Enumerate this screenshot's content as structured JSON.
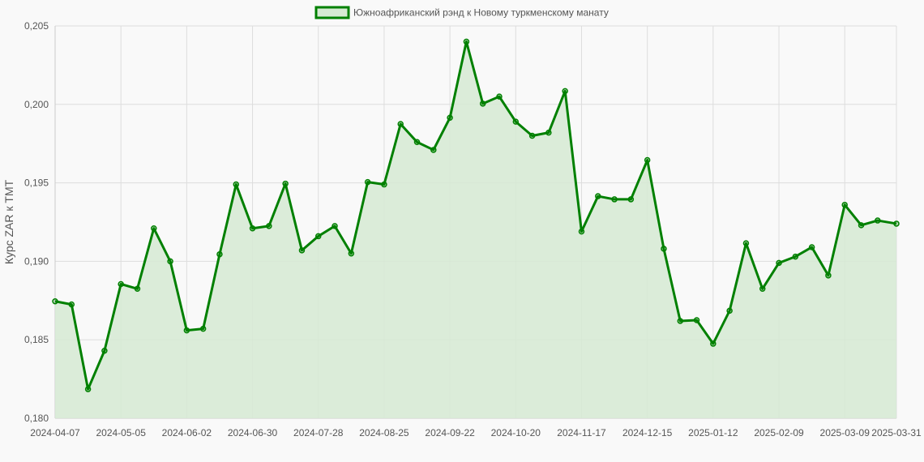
{
  "chart_data": {
    "type": "line",
    "legend": {
      "label": "Южноафриканский рэнд к Новому туркменскому манату",
      "position": "top-center"
    },
    "ylabel": "Курс ZAR к TMT",
    "xlabel": "",
    "ylim": [
      0.18,
      0.205
    ],
    "y_ticks": [
      "0,180",
      "0,185",
      "0,190",
      "0,195",
      "0,200",
      "0,205"
    ],
    "x_tick_labels": [
      "2024-04-07",
      "2024-05-05",
      "2024-06-02",
      "2024-06-30",
      "2024-07-28",
      "2024-08-25",
      "2024-09-22",
      "2024-10-20",
      "2024-11-17",
      "2024-12-15",
      "2025-01-12",
      "2025-02-09",
      "2025-03-09",
      "2025-03-31"
    ],
    "grid": true,
    "colors": {
      "line": "#008000",
      "fill": "#d6ead3",
      "background": "#f9f9f9"
    },
    "series": [
      {
        "name": "Южноафриканский рэнд к Новому туркменскому манату",
        "x": [
          "2024-04-07",
          "2024-04-14",
          "2024-04-21",
          "2024-04-28",
          "2024-05-05",
          "2024-05-12",
          "2024-05-19",
          "2024-05-26",
          "2024-06-02",
          "2024-06-09",
          "2024-06-16",
          "2024-06-23",
          "2024-06-30",
          "2024-07-07",
          "2024-07-14",
          "2024-07-21",
          "2024-07-28",
          "2024-08-04",
          "2024-08-11",
          "2024-08-18",
          "2024-08-25",
          "2024-09-01",
          "2024-09-08",
          "2024-09-15",
          "2024-09-22",
          "2024-09-29",
          "2024-10-06",
          "2024-10-13",
          "2024-10-20",
          "2024-10-27",
          "2024-11-03",
          "2024-11-10",
          "2024-11-17",
          "2024-11-24",
          "2024-12-01",
          "2024-12-08",
          "2024-12-15",
          "2024-12-22",
          "2024-12-29",
          "2025-01-05",
          "2025-01-12",
          "2025-01-19",
          "2025-01-26",
          "2025-02-02",
          "2025-02-09",
          "2025-02-16",
          "2025-02-23",
          "2025-03-02",
          "2025-03-09",
          "2025-03-16",
          "2025-03-23",
          "2025-03-31"
        ],
        "values": [
          0.18745,
          0.18725,
          0.18185,
          0.1843,
          0.18855,
          0.18825,
          0.1921,
          0.19,
          0.1856,
          0.1857,
          0.19045,
          0.1949,
          0.1921,
          0.19225,
          0.19495,
          0.1907,
          0.1916,
          0.19225,
          0.1905,
          0.19505,
          0.1949,
          0.19875,
          0.1976,
          0.1971,
          0.19915,
          0.204,
          0.20005,
          0.2005,
          0.1989,
          0.198,
          0.1982,
          0.20085,
          0.1919,
          0.19415,
          0.19395,
          0.19395,
          0.19645,
          0.1908,
          0.1862,
          0.18625,
          0.18475,
          0.18685,
          0.19115,
          0.18825,
          0.1899,
          0.1903,
          0.1909,
          0.1891,
          0.1936,
          0.1923,
          0.1926,
          0.1924
        ]
      }
    ]
  }
}
